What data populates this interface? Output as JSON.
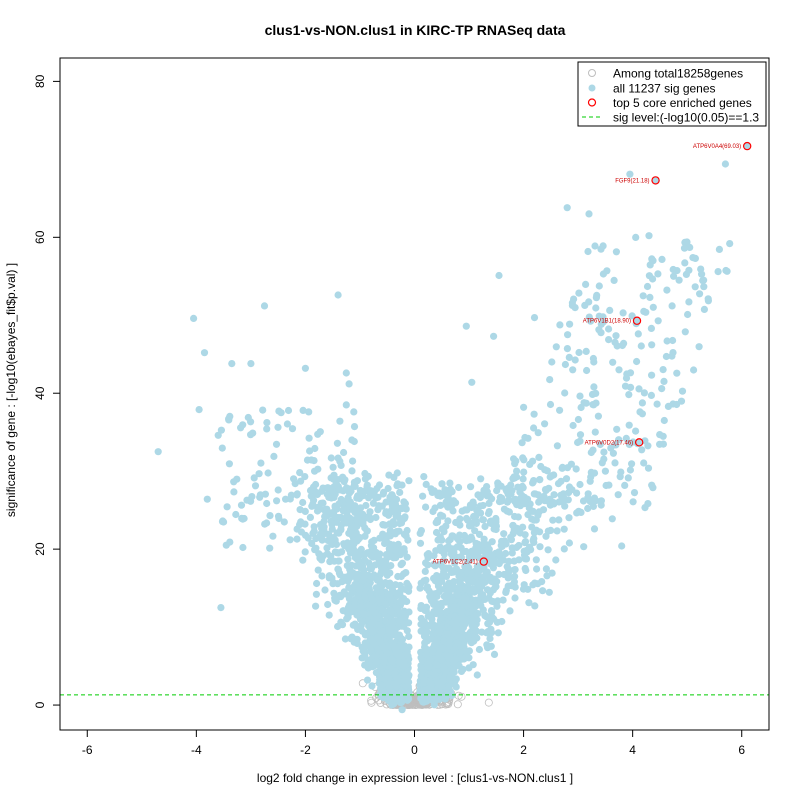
{
  "chart_data": {
    "type": "scatter",
    "title": "clus1-vs-NON.clus1 in KIRC-TP RNASeq data",
    "xlabel": "log2 fold change in expression level : [clus1-vs-NON.clus1 ]",
    "ylabel": "significance of gene : [-log10(ebayes_fit$p.val) ]",
    "xlim": [
      -6.5,
      6.5
    ],
    "ylim": [
      -3.2,
      83
    ],
    "x_ticks": [
      -6,
      -4,
      -2,
      0,
      2,
      4,
      6
    ],
    "y_ticks": [
      0,
      20,
      40,
      60,
      80
    ],
    "sig_level": 1.3,
    "legend": {
      "position": "top-right",
      "entries": [
        {
          "label": "Among total18258genes",
          "style": "open-gray-circle"
        },
        {
          "label": "all 11237 sig genes",
          "style": "filled-lightblue"
        },
        {
          "label": "top 5 core enriched genes",
          "style": "open-red-circle"
        },
        {
          "label": "sig level:(-log10(0.05)==1.3",
          "style": "green-dashed-line"
        }
      ]
    },
    "colors": {
      "sig": "#add8e6",
      "nonsig": "#bebebe",
      "highlight": "#ff0000",
      "highlight_text": "#cc0000",
      "sig_line": "#00cc00"
    },
    "highlighted_genes": [
      {
        "label": "ATP6V0A4(69.03)",
        "x": 6.1,
        "y": 71.7
      },
      {
        "label": "FGF9(21.18)",
        "x": 4.42,
        "y": 67.3
      },
      {
        "label": "ATP6V1B1(18.90)",
        "x": 4.08,
        "y": 49.3
      },
      {
        "label": "ATP6V0D2(17.46)",
        "x": 4.12,
        "y": 33.7
      },
      {
        "label": "ATP6V1C2(2.41)",
        "x": 1.27,
        "y": 18.4
      }
    ],
    "notable_sig_points": [
      [
        -4.7,
        32.5
      ],
      [
        -4.05,
        49.6
      ],
      [
        -3.85,
        45.2
      ],
      [
        -3.95,
        37.9
      ],
      [
        -3.8,
        26.4
      ],
      [
        -3.55,
        12.5
      ],
      [
        -3.45,
        20.5
      ],
      [
        -3.35,
        43.8
      ],
      [
        -3.0,
        43.8
      ],
      [
        -2.75,
        51.2
      ],
      [
        -2.0,
        43.2
      ],
      [
        -1.4,
        52.6
      ],
      [
        -1.25,
        42.6
      ],
      [
        -1.2,
        41.2
      ],
      [
        -1.25,
        38.5
      ],
      [
        0.95,
        48.6
      ],
      [
        1.45,
        47.3
      ],
      [
        1.55,
        55.1
      ],
      [
        2.0,
        38.2
      ],
      [
        2.2,
        49.7
      ],
      [
        2.8,
        63.8
      ],
      [
        3.2,
        63.0
      ],
      [
        3.95,
        68.1
      ],
      [
        5.7,
        69.4
      ],
      [
        5.15,
        57.3
      ],
      [
        4.75,
        55.0
      ],
      [
        4.95,
        58.6
      ],
      [
        4.3,
        60.2
      ],
      [
        5.3,
        54.5
      ],
      [
        3.8,
        20.4
      ],
      [
        3.75,
        43.0
      ],
      [
        3.3,
        22.6
      ],
      [
        3.5,
        30.0
      ],
      [
        2.9,
        43.0
      ],
      [
        1.05,
        41.4
      ]
    ],
    "cloud_density": {
      "near_zero_max_y": 3.0,
      "arm_peak_y": 28,
      "seed": 7
    }
  }
}
